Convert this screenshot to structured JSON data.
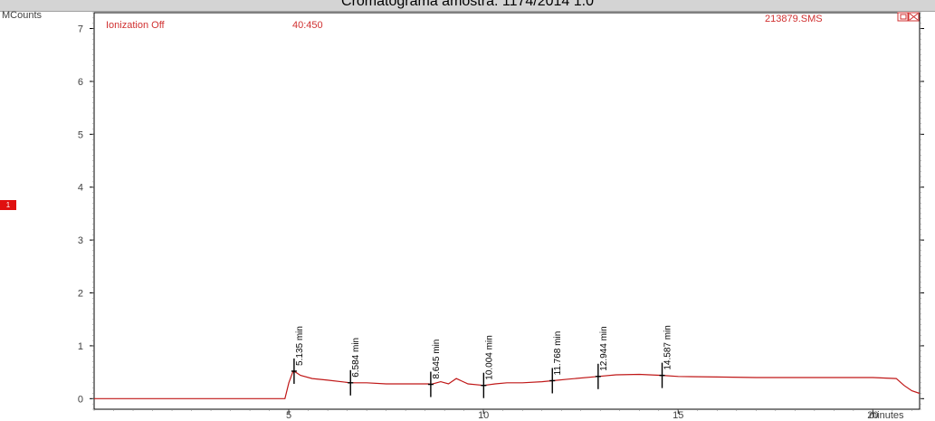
{
  "header": {
    "title": "Cromatograma amostra: 1174/2014 1.0"
  },
  "plot": {
    "ionization": "Ionization Off",
    "mass_range": "40:450",
    "file_name": "213879.SMS",
    "marker_badge": "1"
  },
  "colors": {
    "trace": "#c01818",
    "text_red": "#d03030",
    "axis": "#000000",
    "peak_marker": "#000000"
  },
  "chart_data": {
    "type": "line",
    "ylabel": "MCounts",
    "xlabel": "minutes",
    "xlim": [
      0,
      21.2
    ],
    "ylim": [
      -0.2,
      7.3
    ],
    "x_ticks": [
      5,
      10,
      15,
      20
    ],
    "y_ticks": [
      0,
      1,
      2,
      3,
      4,
      5,
      6,
      7
    ],
    "grid": false,
    "series": [
      {
        "x": [
          0,
          4.9,
          5.0,
          5.1,
          5.135,
          5.3,
          5.6,
          6.0,
          6.584,
          7.0,
          7.5,
          8.0,
          8.6,
          8.645,
          8.9,
          9.1,
          9.3,
          9.6,
          10.004,
          10.3,
          10.6,
          11.0,
          11.5,
          11.768,
          12.2,
          12.944,
          13.4,
          14.0,
          14.587,
          15.0,
          16.0,
          17.0,
          18.0,
          19.0,
          20.0,
          20.6,
          20.8,
          21.0,
          21.2
        ],
        "y": [
          0.0,
          0.0,
          0.3,
          0.5,
          0.52,
          0.44,
          0.38,
          0.35,
          0.3,
          0.3,
          0.28,
          0.28,
          0.28,
          0.27,
          0.32,
          0.28,
          0.38,
          0.28,
          0.25,
          0.28,
          0.3,
          0.3,
          0.32,
          0.34,
          0.37,
          0.42,
          0.45,
          0.46,
          0.44,
          0.42,
          0.41,
          0.4,
          0.4,
          0.4,
          0.4,
          0.38,
          0.25,
          0.15,
          0.1
        ]
      }
    ],
    "peaks": [
      {
        "x": 5.135,
        "y": 0.52,
        "label": "5.135 min"
      },
      {
        "x": 6.584,
        "y": 0.3,
        "label": "6.584 min"
      },
      {
        "x": 8.645,
        "y": 0.27,
        "label": "8.645 min"
      },
      {
        "x": 10.004,
        "y": 0.25,
        "label": "10.004 min"
      },
      {
        "x": 11.768,
        "y": 0.34,
        "label": "11.768 min"
      },
      {
        "x": 12.944,
        "y": 0.42,
        "label": "12.944 min"
      },
      {
        "x": 14.587,
        "y": 0.44,
        "label": "14.587 min"
      }
    ]
  }
}
